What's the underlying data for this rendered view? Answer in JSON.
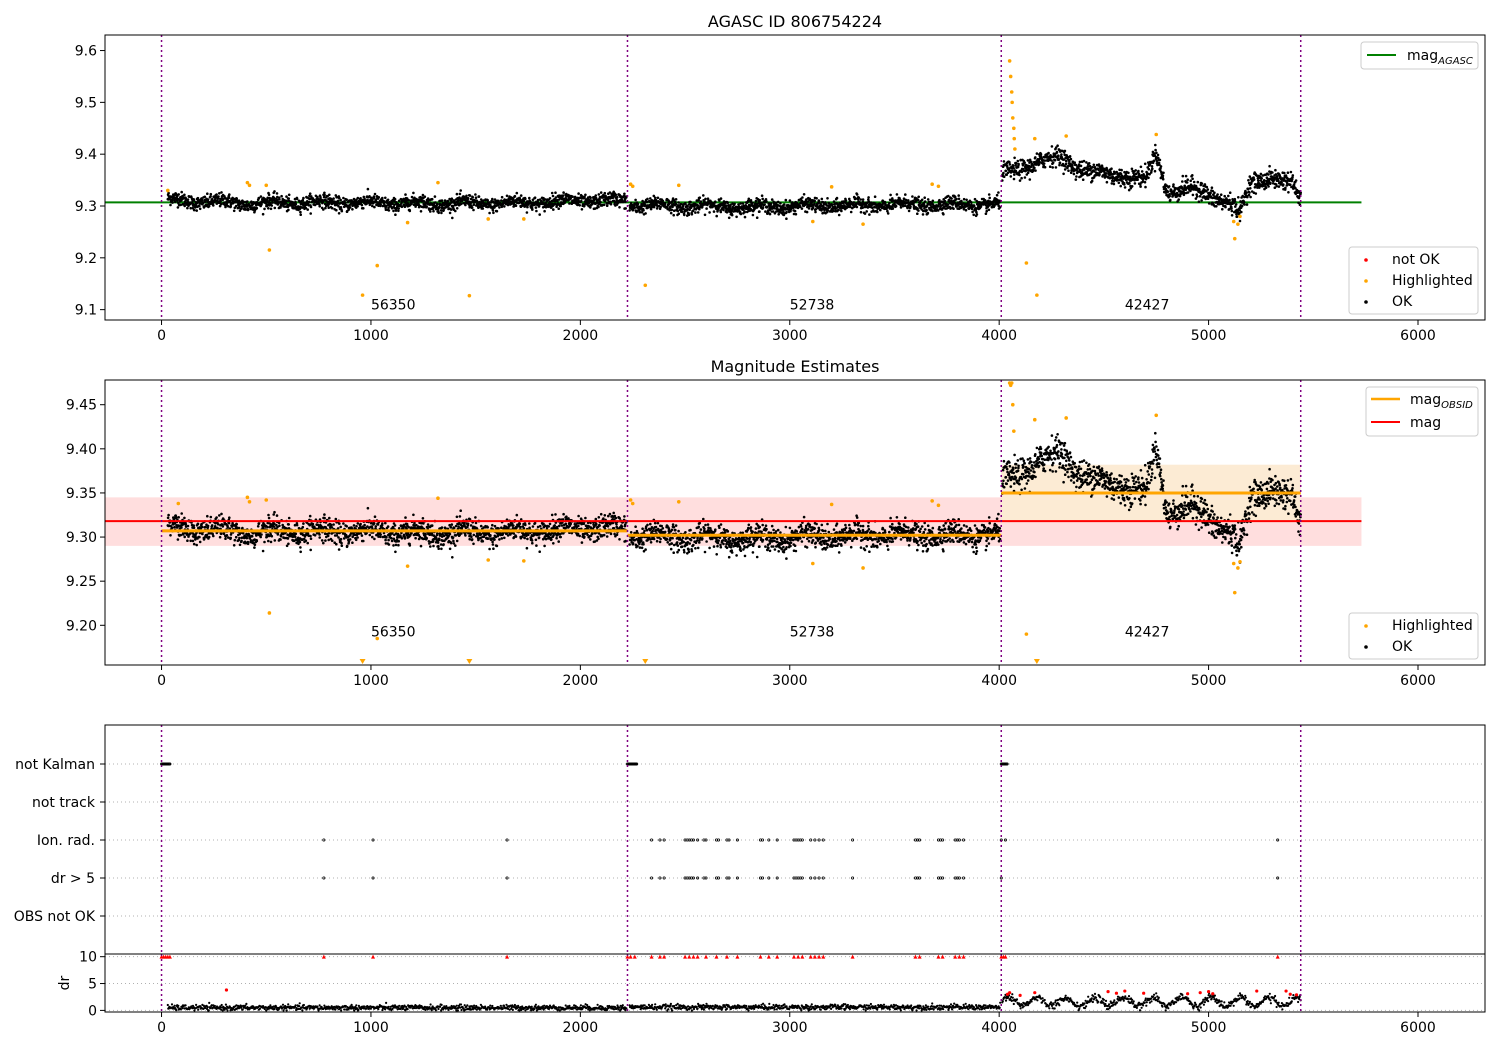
{
  "figure": {
    "colors": {
      "ok": "#000000",
      "highlighted": "#ffa500",
      "not_ok": "#ff0000",
      "agasc_line": "#008000",
      "mag_line": "#ff0000",
      "mag_obsid_line": "#ffa500",
      "mag_band": "#ffcccc",
      "obsid_band": "#fde6c4",
      "obsid_boundary": "#800080"
    },
    "obsid_boundaries": [
      0,
      2225,
      4010,
      5440
    ],
    "obsids": [
      {
        "label": "56350",
        "x": 1000,
        "start": 0,
        "end": 2225
      },
      {
        "label": "52738",
        "x": 3000,
        "start": 2225,
        "end": 4010
      },
      {
        "label": "42427",
        "x": 4600,
        "start": 4010,
        "end": 5440
      }
    ]
  },
  "chart_data": [
    {
      "type": "scatter",
      "title": "AGASC ID 806754224",
      "xlim": [
        -270,
        6320
      ],
      "ylim": [
        9.08,
        9.63
      ],
      "xticks": [
        0,
        1000,
        2000,
        3000,
        4000,
        5000,
        6000
      ],
      "xtick_labels": [
        "0",
        "1000",
        "2000",
        "3000",
        "4000",
        "5000",
        "6000"
      ],
      "yticks": [
        9.1,
        9.2,
        9.3,
        9.4,
        9.5,
        9.6
      ],
      "ytick_labels": [
        "9.1",
        "9.2",
        "9.3",
        "9.4",
        "9.5",
        "9.6"
      ],
      "grid": false,
      "obsid_label_y": 9.11,
      "reference_lines": [
        {
          "name": "mag_AGASC",
          "legend_main": "mag",
          "legend_sub": "AGASC",
          "y": 9.307,
          "x": [
            -270,
            5730
          ]
        }
      ],
      "series": [
        {
          "name": "not OK",
          "description": "no red points visible in this panel"
        },
        {
          "name": "Highlighted",
          "points": [
            [
              30,
              9.33
            ],
            [
              410,
              9.345
            ],
            [
              420,
              9.34
            ],
            [
              500,
              9.34
            ],
            [
              515,
              9.215
            ],
            [
              960,
              9.128
            ],
            [
              1030,
              9.185
            ],
            [
              1175,
              9.268
            ],
            [
              1320,
              9.345
            ],
            [
              1470,
              9.127
            ],
            [
              1560,
              9.275
            ],
            [
              1730,
              9.275
            ],
            [
              2240,
              9.342
            ],
            [
              2250,
              9.338
            ],
            [
              2310,
              9.147
            ],
            [
              2470,
              9.34
            ],
            [
              3110,
              9.27
            ],
            [
              3200,
              9.337
            ],
            [
              3350,
              9.265
            ],
            [
              3680,
              9.342
            ],
            [
              3710,
              9.338
            ],
            [
              4050,
              9.58
            ],
            [
              4055,
              9.55
            ],
            [
              4060,
              9.52
            ],
            [
              4062,
              9.5
            ],
            [
              4065,
              9.47
            ],
            [
              4070,
              9.45
            ],
            [
              4072,
              9.43
            ],
            [
              4075,
              9.41
            ],
            [
              4130,
              9.19
            ],
            [
              4170,
              9.43
            ],
            [
              4180,
              9.128
            ],
            [
              4320,
              9.435
            ],
            [
              4750,
              9.438
            ],
            [
              5120,
              9.27
            ],
            [
              5125,
              9.237
            ],
            [
              5140,
              9.265
            ],
            [
              5150,
              9.28
            ]
          ]
        },
        {
          "name": "OK",
          "segments": [
            {
              "x_start": 30,
              "x_end": 2220,
              "baseline": [
                [
                  30,
                  9.312
                ],
                [
                  400,
                  9.305
                ],
                [
                  800,
                  9.307
                ],
                [
                  1200,
                  9.305
                ],
                [
                  1600,
                  9.305
                ],
                [
                  2000,
                  9.31
                ],
                [
                  2220,
                  9.31
                ]
              ],
              "scatter": 0.009
            },
            {
              "x_start": 2235,
              "x_end": 4005,
              "baseline": [
                [
                  2235,
                  9.302
                ],
                [
                  2800,
                  9.298
                ],
                [
                  3400,
                  9.302
                ],
                [
                  4005,
                  9.303
                ]
              ],
              "scatter": 0.009
            },
            {
              "x_start": 4015,
              "x_end": 5440,
              "baseline": [
                [
                  4015,
                  9.36
                ],
                [
                  4100,
                  9.375
                ],
                [
                  4200,
                  9.385
                ],
                [
                  4300,
                  9.395
                ],
                [
                  4400,
                  9.37
                ],
                [
                  4500,
                  9.36
                ],
                [
                  4600,
                  9.36
                ],
                [
                  4700,
                  9.35
                ],
                [
                  4750,
                  9.4
                ],
                [
                  4800,
                  9.33
                ],
                [
                  4900,
                  9.335
                ],
                [
                  5000,
                  9.32
                ],
                [
                  5100,
                  9.31
                ],
                [
                  5150,
                  9.285
                ],
                [
                  5200,
                  9.34
                ],
                [
                  5300,
                  9.36
                ],
                [
                  5400,
                  9.34
                ],
                [
                  5440,
                  9.31
                ]
              ],
              "scatter": 0.012
            }
          ]
        }
      ],
      "legends": [
        {
          "placement": "upper-right",
          "entries": [
            {
              "kind": "line",
              "color": "#008000",
              "main": "mag",
              "sub": "AGASC"
            }
          ]
        },
        {
          "placement": "lower-right",
          "entries": [
            {
              "kind": "dot",
              "color": "#ff0000",
              "label": "not OK"
            },
            {
              "kind": "dot",
              "color": "#ffa500",
              "label": "Highlighted"
            },
            {
              "kind": "dot",
              "color": "#000000",
              "label": "OK"
            }
          ]
        }
      ]
    },
    {
      "type": "scatter",
      "title": "Magnitude Estimates",
      "xlim": [
        -270,
        6320
      ],
      "ylim": [
        9.155,
        9.478
      ],
      "xticks": [
        0,
        1000,
        2000,
        3000,
        4000,
        5000,
        6000
      ],
      "xtick_labels": [
        "0",
        "1000",
        "2000",
        "3000",
        "4000",
        "5000",
        "6000"
      ],
      "yticks": [
        9.2,
        9.25,
        9.3,
        9.35,
        9.4,
        9.45
      ],
      "ytick_labels": [
        "9.20",
        "9.25",
        "9.30",
        "9.35",
        "9.40",
        "9.45"
      ],
      "grid": false,
      "obsid_label_y": 9.193,
      "bands": [
        {
          "name": "mag band",
          "x": [
            -270,
            5730
          ],
          "y": [
            9.29,
            9.345
          ],
          "color": "#ffdede"
        },
        {
          "name": "obsid 42427 band",
          "x": [
            4010,
            5440
          ],
          "y": [
            9.318,
            9.382
          ],
          "color": "#fcebd4"
        }
      ],
      "reference_lines": [
        {
          "name": "mag",
          "y": 9.318,
          "x": [
            -270,
            5730
          ],
          "color": "#ff0000"
        },
        {
          "name": "mag_OBSID 56350",
          "y": 9.307,
          "x": [
            0,
            2225
          ],
          "color": "#ffa500"
        },
        {
          "name": "mag_OBSID 52738",
          "y": 9.302,
          "x": [
            2225,
            4010
          ],
          "color": "#ffa500"
        },
        {
          "name": "mag_OBSID 42427",
          "y": 9.35,
          "x": [
            4010,
            5440
          ],
          "color": "#ffa500"
        }
      ],
      "series": [
        {
          "name": "Highlighted",
          "points": [
            [
              80,
              9.338
            ],
            [
              410,
              9.345
            ],
            [
              420,
              9.34
            ],
            [
              500,
              9.342
            ],
            [
              515,
              9.214
            ],
            [
              960,
              9.158
            ],
            [
              1030,
              9.185
            ],
            [
              1175,
              9.267
            ],
            [
              1320,
              9.344
            ],
            [
              1470,
              9.158
            ],
            [
              1560,
              9.274
            ],
            [
              1730,
              9.273
            ],
            [
              2240,
              9.342
            ],
            [
              2250,
              9.338
            ],
            [
              2310,
              9.158
            ],
            [
              2470,
              9.34
            ],
            [
              3110,
              9.27
            ],
            [
              3200,
              9.337
            ],
            [
              3350,
              9.265
            ],
            [
              3680,
              9.341
            ],
            [
              3710,
              9.336
            ],
            [
              4050,
              9.475
            ],
            [
              4055,
              9.472
            ],
            [
              4060,
              9.474
            ],
            [
              4065,
              9.45
            ],
            [
              4070,
              9.42
            ],
            [
              4130,
              9.19
            ],
            [
              4170,
              9.433
            ],
            [
              4180,
              9.158
            ],
            [
              4320,
              9.435
            ],
            [
              4750,
              9.438
            ],
            [
              5120,
              9.27
            ],
            [
              5125,
              9.237
            ],
            [
              5140,
              9.265
            ],
            [
              5150,
              9.272
            ]
          ]
        },
        {
          "name": "OK",
          "same_as_panel": 0
        }
      ],
      "legends": [
        {
          "placement": "upper-right",
          "entries": [
            {
              "kind": "line",
              "color": "#ffa500",
              "main": "mag",
              "sub": "OBSID"
            },
            {
              "kind": "line",
              "color": "#ff0000",
              "main": "mag",
              "sub": ""
            }
          ]
        },
        {
          "placement": "lower-right",
          "entries": [
            {
              "kind": "dot",
              "color": "#ffa500",
              "label": "Highlighted"
            },
            {
              "kind": "dot",
              "color": "#000000",
              "label": "OK"
            }
          ]
        }
      ]
    },
    {
      "type": "scatter",
      "xlim": [
        -270,
        6320
      ],
      "categories": [
        "not Kalman",
        "not track",
        "Ion. rad.",
        "dr > 5",
        "OBS not OK"
      ],
      "grid": "horizontal dotted",
      "series": [
        {
          "name": "not Kalman",
          "x_ranges": [
            [
              0,
              40
            ],
            [
              2225,
              2270
            ],
            [
              4010,
              4040
            ]
          ]
        },
        {
          "name": "not track",
          "x_ranges": []
        },
        {
          "name": "Ion. rad.",
          "x_values": [
            775,
            1010,
            1650,
            2340,
            2380,
            2400,
            2500,
            2510,
            2520,
            2530,
            2540,
            2560,
            2590,
            2600,
            2650,
            2660,
            2700,
            2710,
            2750,
            2860,
            2870,
            2900,
            2940,
            3020,
            3030,
            3040,
            3050,
            3060,
            3100,
            3120,
            3140,
            3160,
            3300,
            3600,
            3610,
            3620,
            3710,
            3720,
            3730,
            3790,
            3800,
            3810,
            3830,
            4010,
            4030,
            5330
          ]
        },
        {
          "name": "dr > 5",
          "x_values": [
            775,
            1010,
            1650,
            2340,
            2380,
            2400,
            2500,
            2510,
            2520,
            2530,
            2540,
            2560,
            2590,
            2600,
            2650,
            2660,
            2700,
            2710,
            2750,
            2860,
            2870,
            2900,
            2940,
            3020,
            3030,
            3040,
            3050,
            3060,
            3100,
            3120,
            3140,
            3160,
            3300,
            3600,
            3610,
            3620,
            3710,
            3720,
            3730,
            3790,
            3800,
            3810,
            3830,
            4010,
            5330
          ]
        },
        {
          "name": "OBS not OK",
          "x_ranges": []
        }
      ]
    },
    {
      "type": "scatter",
      "xlim": [
        -270,
        6320
      ],
      "ylim": [
        -0.3,
        10.5
      ],
      "ylabel": "dr",
      "yticks": [
        0,
        5,
        10
      ],
      "ytick_labels": [
        "0",
        "5",
        "10"
      ],
      "xticks": [
        0,
        1000,
        2000,
        3000,
        4000,
        5000,
        6000
      ],
      "xtick_labels": [
        "0",
        "1000",
        "2000",
        "3000",
        "4000",
        "5000",
        "6000"
      ],
      "grid": "horizontal dotted",
      "series": [
        {
          "name": "dr OK",
          "segments": [
            {
              "x_start": 30,
              "x_end": 2220,
              "level": 0.5
            },
            {
              "x_start": 2235,
              "x_end": 4005,
              "level": 0.6
            },
            {
              "x_start": 4015,
              "x_end": 5440,
              "level": 2.0,
              "wavy": true
            }
          ]
        },
        {
          "name": "dr clipped (>10)",
          "x_values": [
            0,
            10,
            20,
            30,
            40,
            775,
            1010,
            1650,
            2225,
            2240,
            2260,
            2340,
            2380,
            2400,
            2500,
            2520,
            2540,
            2560,
            2600,
            2650,
            2700,
            2750,
            2860,
            2900,
            2940,
            3020,
            3040,
            3060,
            3100,
            3120,
            3140,
            3160,
            3300,
            3600,
            3620,
            3710,
            3730,
            3790,
            3810,
            3830,
            4010,
            4020,
            4030,
            5330
          ]
        },
        {
          "name": "dr red",
          "points": [
            [
              310,
              3.8
            ],
            [
              4040,
              3.0
            ],
            [
              4050,
              3.3
            ],
            [
              4100,
              2.8
            ],
            [
              4170,
              3.3
            ],
            [
              4520,
              3.5
            ],
            [
              4560,
              3.2
            ],
            [
              4600,
              3.6
            ],
            [
              4690,
              3.2
            ],
            [
              4900,
              3.1
            ],
            [
              4960,
              3.3
            ],
            [
              5000,
              3.5
            ],
            [
              5020,
              3.1
            ],
            [
              5230,
              3.6
            ],
            [
              5370,
              3.6
            ],
            [
              5390,
              3.0
            ],
            [
              5420,
              2.9
            ]
          ]
        }
      ]
    }
  ]
}
